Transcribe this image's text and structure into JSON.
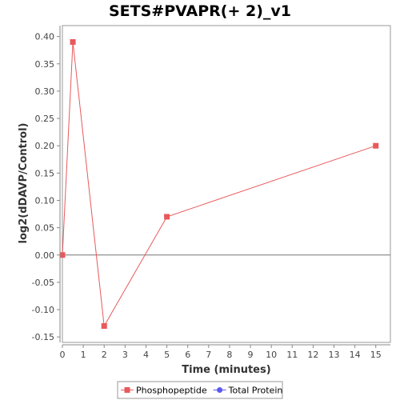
{
  "chart_data": {
    "type": "line",
    "title": "SETS#PVAPR(+ 2)_v1",
    "xlabel": "Time (minutes)",
    "ylabel": "log2(dDAVP/Control)",
    "xlim": [
      0,
      15.7
    ],
    "ylim": [
      -0.16,
      0.42
    ],
    "xticks": [
      0,
      1,
      2,
      3,
      4,
      5,
      6,
      7,
      8,
      9,
      10,
      11,
      12,
      13,
      14,
      15
    ],
    "yticks": [
      -0.15,
      -0.1,
      -0.05,
      0.0,
      0.05,
      0.1,
      0.15,
      0.2,
      0.25,
      0.3,
      0.35,
      0.4
    ],
    "ytick_labels": [
      "-0.15",
      "-0.10",
      "-0.05",
      "0.00",
      "0.05",
      "0.10",
      "0.15",
      "0.20",
      "0.25",
      "0.30",
      "0.35",
      "0.40"
    ],
    "zero_line": true,
    "grid": false,
    "legend_position": "bottom",
    "series": [
      {
        "name": "Phosphopeptide",
        "color": "#e8595b",
        "marker": "square",
        "x": [
          0,
          0.5,
          2,
          5,
          15
        ],
        "y": [
          0.0,
          0.39,
          -0.13,
          0.07,
          0.2
        ]
      },
      {
        "name": "Total Protein",
        "color": "#5a5aee",
        "marker": "circle",
        "x": [],
        "y": []
      }
    ]
  }
}
